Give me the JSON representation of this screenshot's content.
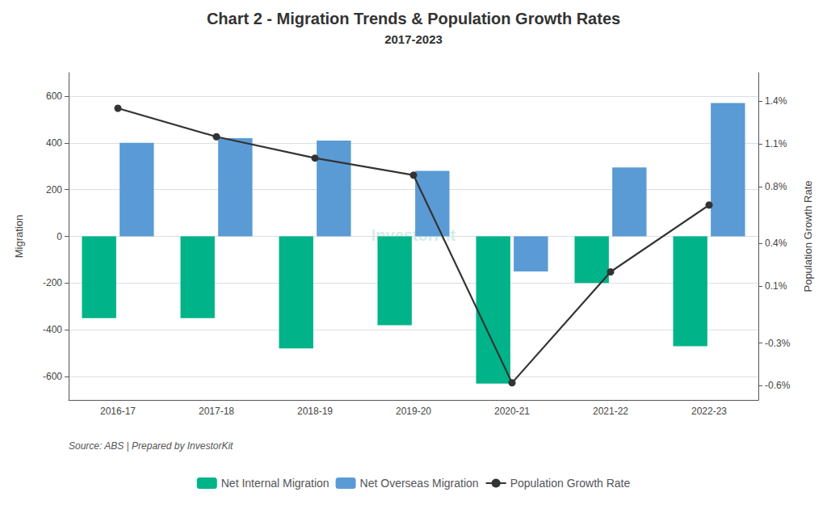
{
  "chart_data": {
    "type": "bar",
    "title": "Chart 2 - Migration Trends & Population Growth Rates",
    "subtitle": "2017-2023",
    "categories": [
      "2016-17",
      "2017-18",
      "2018-19",
      "2019-20",
      "2020-21",
      "2021-22",
      "2022-23"
    ],
    "series": [
      {
        "name": "Net Internal Migration",
        "type": "bar",
        "color": "#00B388",
        "values": [
          -350,
          -350,
          -480,
          -380,
          -630,
          -200,
          -470
        ]
      },
      {
        "name": "Net Overseas Migration",
        "type": "bar",
        "color": "#5B9BD5",
        "values": [
          400,
          420,
          410,
          280,
          -150,
          295,
          570
        ]
      },
      {
        "name": "Population Growth Rate",
        "type": "line",
        "axis": "y2",
        "color": "#333333",
        "marker": "circle",
        "values": [
          1.35,
          1.15,
          1.0,
          0.88,
          -0.58,
          0.2,
          0.67
        ]
      }
    ],
    "ylabel": "Migration",
    "y2label": "Population Growth Rate",
    "ylim": [
      -700,
      700
    ],
    "yticks": [
      -600,
      -400,
      -200,
      0,
      200,
      400,
      600
    ],
    "y2lim": [
      -0.7,
      1.6
    ],
    "y2ticks": [
      {
        "value": -0.6,
        "label": "-0.6%"
      },
      {
        "value": -0.3,
        "label": "-0.3%"
      },
      {
        "value": 0.1,
        "label": "0.1%"
      },
      {
        "value": 0.4,
        "label": "0.4%"
      },
      {
        "value": 0.8,
        "label": "0.8%"
      },
      {
        "value": 1.1,
        "label": "1.1%"
      },
      {
        "value": 1.4,
        "label": "1.4%"
      }
    ],
    "grid": true,
    "legend": "bottom",
    "source": "Source: ABS | Prepared by InvestorKit",
    "watermark": "InvestorKit"
  }
}
